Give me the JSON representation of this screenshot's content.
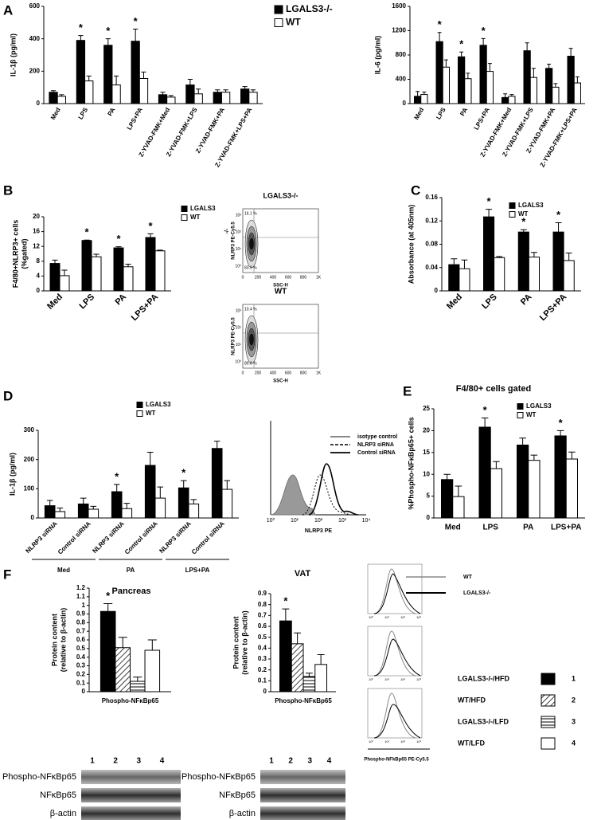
{
  "panel_labels": [
    "A",
    "B",
    "C",
    "D",
    "E",
    "F"
  ],
  "chart_data": [
    {
      "type": "bar",
      "ylabel": [
        "IL-1β (pg/ml)"
      ],
      "ylim": [
        0,
        600
      ],
      "yticks": [
        0,
        200,
        400,
        600
      ],
      "legend": true,
      "categories": [
        "Med",
        "LPS",
        "PA",
        "LPS+PA",
        "Z-YVAD-FMK+Med",
        "Z-YVAD-FMK+LPS",
        "Z-YVAD-FMK+PA",
        "Z-YVAD-FMK+LPS+PA"
      ],
      "series": [
        {
          "name": "LGALS3-/-",
          "color": "#000000",
          "values": [
            70,
            390,
            360,
            385,
            55,
            115,
            70,
            90
          ],
          "errors": [
            10,
            30,
            40,
            75,
            15,
            35,
            15,
            15
          ],
          "significance": [
            null,
            "*",
            "*",
            "*",
            null,
            null,
            null,
            null
          ]
        },
        {
          "name": "WT",
          "color": "#ffffff",
          "values": [
            45,
            140,
            115,
            155,
            40,
            60,
            70,
            70
          ],
          "errors": [
            10,
            30,
            55,
            40,
            10,
            30,
            15,
            15
          ]
        }
      ]
    },
    {
      "type": "bar",
      "ylabel": [
        "IL-6 (pg/ml)"
      ],
      "ylim": [
        0,
        1600
      ],
      "yticks": [
        0,
        400,
        800,
        1200,
        1600
      ],
      "legend": false,
      "categories": [
        "Med",
        "LPS",
        "PA",
        "LPS+PA",
        "Z-YVAD-FMK+Med",
        "Z-YVAD-FMK+LPS",
        "Z-YVAD-FMK+PA",
        "Z-YVAD-FMK+LPS+PA"
      ],
      "series": [
        {
          "name": "LGALS3-/-",
          "color": "#000000",
          "values": [
            120,
            1020,
            770,
            960,
            100,
            870,
            580,
            780
          ],
          "errors": [
            80,
            150,
            80,
            110,
            60,
            130,
            70,
            130
          ],
          "significance": [
            null,
            "*",
            "*",
            "*",
            null,
            null,
            null,
            null
          ]
        },
        {
          "name": "WT",
          "color": "#ffffff",
          "values": [
            150,
            600,
            410,
            530,
            120,
            430,
            270,
            340
          ],
          "errors": [
            40,
            120,
            90,
            130,
            30,
            150,
            60,
            100
          ]
        }
      ]
    },
    {
      "type": "bar",
      "ylabel": [
        "F4/80+NLRP3+ cells",
        "(%gated)"
      ],
      "ylim": [
        0,
        20
      ],
      "yticks": [
        0,
        4,
        8,
        12,
        16,
        20
      ],
      "legend": true,
      "categories": [
        "Med",
        "LPS",
        "PA",
        "LPS+PA"
      ],
      "series": [
        {
          "name": "LGALS3",
          "color": "#000000",
          "values": [
            7.4,
            13.6,
            11.6,
            14.4
          ],
          "errors": [
            0.9,
            0.1,
            0.3,
            1.0
          ],
          "significance": [
            null,
            "*",
            "*",
            "*"
          ]
        },
        {
          "name": "WT",
          "color": "#ffffff",
          "values": [
            4.1,
            9.2,
            6.5,
            10.8
          ],
          "errors": [
            1.5,
            0.7,
            0.7,
            0.2
          ]
        }
      ]
    },
    {
      "type": "bar",
      "ylabel": [
        "Absorbance (at 405nm)"
      ],
      "ylim": [
        0,
        0.16
      ],
      "yticks": [
        0,
        0.04,
        0.08,
        0.12,
        0.16
      ],
      "legend": true,
      "categories": [
        "Med",
        "LPS",
        "PA",
        "LPS+PA"
      ],
      "series": [
        {
          "name": "LGALS3",
          "color": "#000000",
          "values": [
            0.045,
            0.127,
            0.101,
            0.101
          ],
          "errors": [
            0.01,
            0.013,
            0.004,
            0.016
          ],
          "significance": [
            null,
            "*",
            "*",
            "*"
          ]
        },
        {
          "name": "WT",
          "color": "#ffffff",
          "values": [
            0.038,
            0.057,
            0.058,
            0.052
          ],
          "errors": [
            0.015,
            0.002,
            0.008,
            0.013
          ]
        }
      ]
    },
    {
      "type": "bar",
      "ylabel": [
        "IL-1β (pg/ml)"
      ],
      "ylim": [
        0,
        300
      ],
      "yticks": [
        0,
        100,
        200,
        300
      ],
      "legend": true,
      "categories": [
        "NLRP3 siRNA",
        "Control siRNA",
        "NLRP3 siRNA",
        "Control siRNA",
        "NLRP3 siRNA",
        "Control siRNA"
      ],
      "groups": [
        "Med",
        "PA",
        "LPS+PA"
      ],
      "series": [
        {
          "name": "LGALS3",
          "color": "#000000",
          "values": [
            42,
            48,
            90,
            180,
            103,
            238
          ],
          "errors": [
            18,
            20,
            25,
            45,
            25,
            25
          ],
          "significance": [
            null,
            null,
            "*",
            null,
            "*",
            null
          ]
        },
        {
          "name": "WT",
          "color": "#ffffff",
          "values": [
            22,
            30,
            32,
            68,
            48,
            98
          ],
          "errors": [
            12,
            10,
            18,
            38,
            15,
            30
          ]
        }
      ]
    },
    {
      "type": "bar",
      "title": "F4/80+ cells gated",
      "ylabel": [
        "%Phospho-NFκBp65+ cells"
      ],
      "ylim": [
        0,
        25
      ],
      "yticks": [
        0,
        5,
        10,
        15,
        20,
        25
      ],
      "legend": true,
      "categories": [
        "Med",
        "LPS",
        "PA",
        "LPS+PA"
      ],
      "series": [
        {
          "name": "LGALS3",
          "color": "#000000",
          "values": [
            8.8,
            20.8,
            16.7,
            18.8
          ],
          "errors": [
            1.2,
            2.1,
            1.6,
            1.2
          ],
          "significance": [
            null,
            "*",
            null,
            "*"
          ]
        },
        {
          "name": "WT",
          "color": "#ffffff",
          "values": [
            4.9,
            11.3,
            13.2,
            13.5
          ],
          "errors": [
            2.4,
            1.6,
            1.2,
            1.6
          ]
        }
      ]
    },
    {
      "type": "bar",
      "title": "Pancreas",
      "ylabel": [
        "Protein content",
        "(relative to β-actin)"
      ],
      "ylim": [
        0,
        1.2
      ],
      "yticks": [
        0,
        0.1,
        0.2,
        0.3,
        0.4,
        0.5,
        0.6,
        0.7,
        0.8,
        0.9,
        1,
        1.1,
        1.2
      ],
      "legend": false,
      "categories": [
        "Phospho-NFκBp65"
      ],
      "series": [
        {
          "name": "LGALS3-/-/HFD",
          "color": "#000000",
          "values": [
            0.93
          ],
          "errors": [
            0.09
          ],
          "significance": [
            "*"
          ]
        },
        {
          "name": "WT/HFD",
          "color": "#ffffff",
          "pattern": "hatch",
          "values": [
            0.51
          ],
          "errors": [
            0.12
          ]
        },
        {
          "name": "LGALS3-/-/LFD",
          "color": "#ffffff",
          "pattern": "hlines",
          "values": [
            0.12
          ],
          "errors": [
            0.05
          ]
        },
        {
          "name": "WT/LFD",
          "color": "#ffffff",
          "values": [
            0.48
          ],
          "errors": [
            0.12
          ]
        }
      ]
    },
    {
      "type": "bar",
      "title": "VAT",
      "ylabel": [
        "Protein content",
        "(relative to β-actin)"
      ],
      "ylim": [
        0,
        0.9
      ],
      "yticks": [
        0,
        0.1,
        0.2,
        0.3,
        0.4,
        0.5,
        0.6,
        0.7,
        0.8,
        0.9
      ],
      "legend": false,
      "categories": [
        "Phospho-NFκBp65"
      ],
      "series": [
        {
          "name": "LGALS3-/-/HFD",
          "color": "#000000",
          "values": [
            0.65
          ],
          "errors": [
            0.11
          ],
          "significance": [
            "*"
          ]
        },
        {
          "name": "WT/HFD",
          "color": "#ffffff",
          "pattern": "hatch",
          "values": [
            0.44
          ],
          "errors": [
            0.1
          ]
        },
        {
          "name": "LGALS3-/-/LFD",
          "color": "#ffffff",
          "pattern": "hlines",
          "values": [
            0.14
          ],
          "errors": [
            0.03
          ]
        },
        {
          "name": "WT/LFD",
          "color": "#ffffff",
          "values": [
            0.25
          ],
          "errors": [
            0.09
          ]
        }
      ]
    }
  ],
  "flow_b": {
    "titles": [
      "LGALS3-/-",
      "WT"
    ],
    "side_label": "-/-",
    "ylabel": "NLRP3 PE-Cy5.5",
    "xlabel": "SSC-H",
    "xticks": [
      "0",
      "200",
      "400",
      "600",
      "800",
      "1K"
    ],
    "yticks": [
      "10⁰",
      "10¹",
      "10²",
      "10³"
    ],
    "gates": [
      [
        "16.1 %",
        "83.9 %"
      ],
      [
        "10.4 %",
        "89.6 %"
      ]
    ]
  },
  "hist_d": {
    "legend": [
      "isotype control",
      "NLRP3 siRNA",
      "Control siRNA"
    ],
    "xlabel": "NLRP3 PE",
    "xticks": [
      "10⁰",
      "10¹",
      "10²",
      "10³",
      "10⁴"
    ]
  },
  "flow_f": {
    "legend": [
      "WT",
      "LGALS3-/-"
    ],
    "xticks": [
      "10⁰",
      "10¹",
      "10²",
      "10³"
    ],
    "xlabel": "Phospho-NFkBp65 PE-Cy5.5"
  },
  "legend_f_keys": [
    "1",
    "2",
    "3",
    "4"
  ],
  "blots": {
    "lanes": [
      "1",
      "2",
      "3",
      "4"
    ],
    "rows": [
      "Phospho-NFκBp65",
      "NFκBp65",
      "β-actin"
    ]
  }
}
